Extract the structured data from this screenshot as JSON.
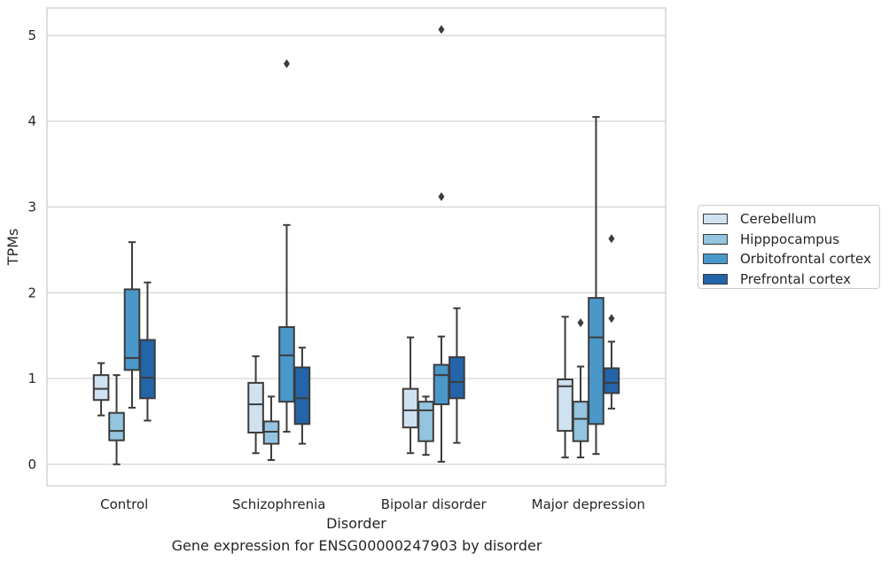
{
  "caption": "Gene expression for ENSG00000247903 by disorder",
  "chart_data": {
    "type": "box",
    "xlabel": "Disorder",
    "ylabel": "TPMs",
    "ylim": [
      -0.25,
      5.32
    ],
    "yticks": [
      0,
      1,
      2,
      3,
      4,
      5
    ],
    "grid": "horizontal",
    "legend_position": "right",
    "categories": [
      "Control",
      "Schizophrenia",
      "Bipolar disorder",
      "Major depression"
    ],
    "series": [
      {
        "name": "Cerebellum",
        "color": "#d0e1f2",
        "boxes": [
          {
            "min": 0.57,
            "q1": 0.75,
            "median": 0.88,
            "q3": 1.04,
            "max": 1.18,
            "outliers": []
          },
          {
            "min": 0.13,
            "q1": 0.37,
            "median": 0.7,
            "q3": 0.95,
            "max": 1.26,
            "outliers": []
          },
          {
            "min": 0.13,
            "q1": 0.43,
            "median": 0.63,
            "q3": 0.88,
            "max": 1.48,
            "outliers": []
          },
          {
            "min": 0.08,
            "q1": 0.39,
            "median": 0.91,
            "q3": 0.99,
            "max": 1.72,
            "outliers": []
          }
        ]
      },
      {
        "name": "Hipppocampus",
        "color": "#94c4df",
        "boxes": [
          {
            "min": 0.0,
            "q1": 0.28,
            "median": 0.39,
            "q3": 0.6,
            "max": 1.04,
            "outliers": []
          },
          {
            "min": 0.05,
            "q1": 0.24,
            "median": 0.38,
            "q3": 0.5,
            "max": 0.79,
            "outliers": []
          },
          {
            "min": 0.11,
            "q1": 0.27,
            "median": 0.63,
            "q3": 0.73,
            "max": 0.79,
            "outliers": []
          },
          {
            "min": 0.08,
            "q1": 0.27,
            "median": 0.53,
            "q3": 0.73,
            "max": 1.14,
            "outliers": [
              1.65
            ]
          }
        ]
      },
      {
        "name": "Orbitofrontal cortex",
        "color": "#4a98c9",
        "boxes": [
          {
            "min": 0.66,
            "q1": 1.1,
            "median": 1.24,
            "q3": 2.04,
            "max": 2.59,
            "outliers": []
          },
          {
            "min": 0.38,
            "q1": 0.73,
            "median": 1.27,
            "q3": 1.6,
            "max": 2.79,
            "outliers": [
              4.67
            ]
          },
          {
            "min": 0.03,
            "q1": 0.7,
            "median": 1.04,
            "q3": 1.16,
            "max": 1.49,
            "outliers": [
              3.12,
              5.07
            ]
          },
          {
            "min": 0.12,
            "q1": 0.47,
            "median": 1.48,
            "q3": 1.94,
            "max": 4.05,
            "outliers": []
          }
        ]
      },
      {
        "name": "Prefrontal cortex",
        "color": "#2464a8",
        "boxes": [
          {
            "min": 0.51,
            "q1": 0.77,
            "median": 1.01,
            "q3": 1.45,
            "max": 2.12,
            "outliers": []
          },
          {
            "min": 0.24,
            "q1": 0.47,
            "median": 0.77,
            "q3": 1.13,
            "max": 1.36,
            "outliers": []
          },
          {
            "min": 0.25,
            "q1": 0.77,
            "median": 0.96,
            "q3": 1.25,
            "max": 1.82,
            "outliers": []
          },
          {
            "min": 0.65,
            "q1": 0.83,
            "median": 0.95,
            "q3": 1.12,
            "max": 1.43,
            "outliers": [
              1.7,
              2.63
            ]
          }
        ]
      }
    ]
  }
}
